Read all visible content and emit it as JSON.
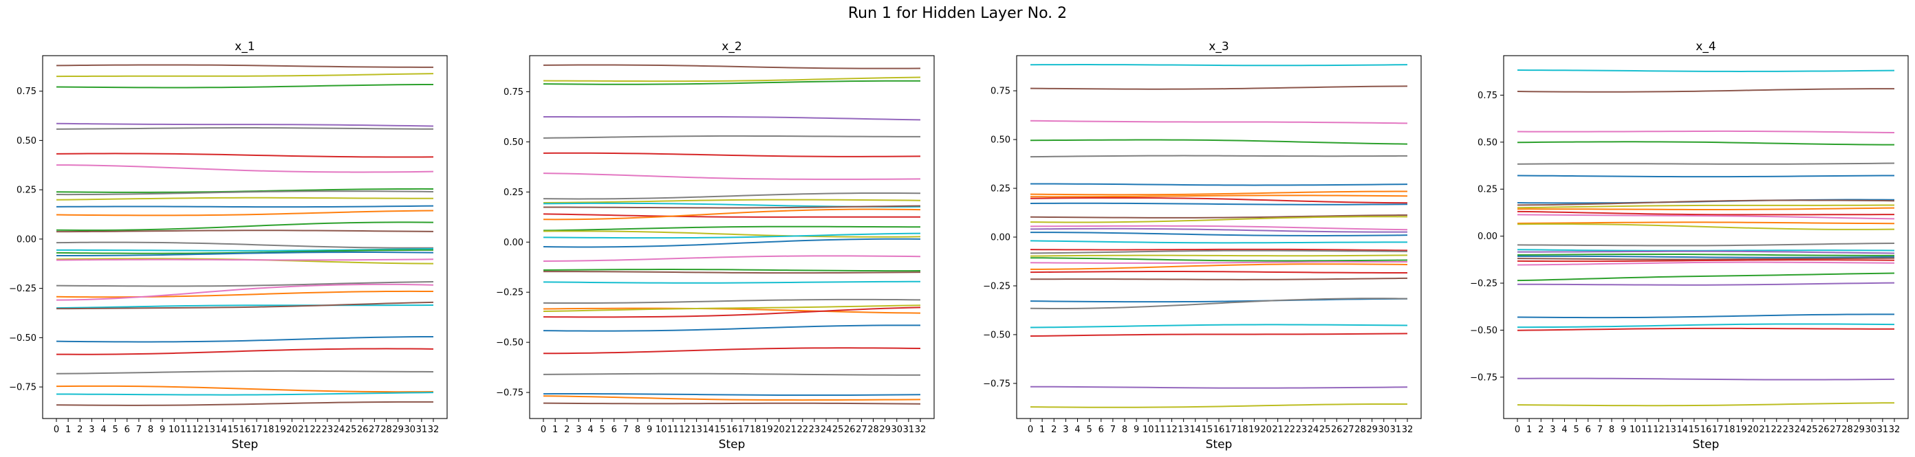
{
  "suptitle": "Run 1 for Hidden Layer No. 2",
  "chart_data": [
    {
      "type": "line",
      "title": "x_1",
      "xlabel": "Step",
      "ylabel": "",
      "x": [
        0,
        1,
        2,
        3,
        4,
        5,
        6,
        7,
        8,
        9,
        10,
        11,
        12,
        13,
        14,
        15,
        16,
        17,
        18,
        19,
        20,
        21,
        22,
        23,
        24,
        25,
        26,
        27,
        28,
        29,
        30,
        31,
        32
      ],
      "xticks": [
        "0",
        "1",
        "2",
        "3",
        "4",
        "5",
        "6",
        "7",
        "8",
        "9",
        "10",
        "11",
        "12",
        "13",
        "14",
        "15",
        "16",
        "17",
        "18",
        "19",
        "20",
        "21",
        "22",
        "23",
        "24",
        "25",
        "26",
        "27",
        "28",
        "29",
        "30",
        "31",
        "32"
      ],
      "ylim": [
        -0.91,
        0.93
      ],
      "yticks": [
        -0.75,
        -0.5,
        -0.25,
        0.0,
        0.25,
        0.5,
        0.75
      ],
      "yticklabels": [
        "−0.75",
        "−0.50",
        "−0.25",
        "0.00",
        "0.25",
        "0.50",
        "0.75"
      ],
      "series": [
        {
          "color": "#8c564b",
          "start": 0.88,
          "end": 0.875
        },
        {
          "color": "#bcbd22",
          "start": 0.82,
          "end": 0.84
        },
        {
          "color": "#2ca02c",
          "start": 0.77,
          "end": 0.78
        },
        {
          "color": "#9467bd",
          "start": 0.59,
          "end": 0.57
        },
        {
          "color": "#7f7f7f",
          "start": 0.56,
          "end": 0.56
        },
        {
          "color": "#d62728",
          "start": 0.43,
          "end": 0.42
        },
        {
          "color": "#e377c2",
          "start": 0.37,
          "end": 0.34
        },
        {
          "color": "#2ca02c",
          "start": 0.24,
          "end": 0.25
        },
        {
          "color": "#7f7f7f",
          "start": 0.23,
          "end": 0.24
        },
        {
          "color": "#bcbd22",
          "start": 0.2,
          "end": 0.21
        },
        {
          "color": "#1f77b4",
          "start": 0.16,
          "end": 0.17
        },
        {
          "color": "#ff7f0e",
          "start": 0.12,
          "end": 0.14
        },
        {
          "color": "#2ca02c",
          "start": 0.05,
          "end": 0.08
        },
        {
          "color": "#8c564b",
          "start": 0.04,
          "end": 0.04
        },
        {
          "color": "#7f7f7f",
          "start": -0.02,
          "end": -0.04
        },
        {
          "color": "#17becf",
          "start": -0.06,
          "end": -0.05
        },
        {
          "color": "#2ca02c",
          "start": -0.07,
          "end": -0.06
        },
        {
          "color": "#1f77b4",
          "start": -0.08,
          "end": -0.07
        },
        {
          "color": "#bcbd22",
          "start": -0.1,
          "end": -0.12
        },
        {
          "color": "#e377c2",
          "start": -0.11,
          "end": -0.1
        },
        {
          "color": "#7f7f7f",
          "start": -0.24,
          "end": -0.22
        },
        {
          "color": "#ff7f0e",
          "start": -0.29,
          "end": -0.27
        },
        {
          "color": "#e377c2",
          "start": -0.3,
          "end": -0.23
        },
        {
          "color": "#17becf",
          "start": -0.35,
          "end": -0.33
        },
        {
          "color": "#8c564b",
          "start": -0.36,
          "end": -0.32
        },
        {
          "color": "#1f77b4",
          "start": -0.52,
          "end": -0.5
        },
        {
          "color": "#d62728",
          "start": -0.58,
          "end": -0.56
        },
        {
          "color": "#7f7f7f",
          "start": -0.68,
          "end": -0.67
        },
        {
          "color": "#ff7f0e",
          "start": -0.75,
          "end": -0.77
        },
        {
          "color": "#17becf",
          "start": -0.79,
          "end": -0.78
        },
        {
          "color": "#8c564b",
          "start": -0.84,
          "end": -0.83
        }
      ]
    },
    {
      "type": "line",
      "title": "x_2",
      "xlabel": "Step",
      "ylabel": "",
      "x": [
        0,
        1,
        2,
        3,
        4,
        5,
        6,
        7,
        8,
        9,
        10,
        11,
        12,
        13,
        14,
        15,
        16,
        17,
        18,
        19,
        20,
        21,
        22,
        23,
        24,
        25,
        26,
        27,
        28,
        29,
        30,
        31,
        32
      ],
      "xticks": [
        "0",
        "1",
        "2",
        "3",
        "4",
        "5",
        "6",
        "7",
        "8",
        "9",
        "10",
        "11",
        "12",
        "13",
        "14",
        "15",
        "16",
        "17",
        "18",
        "19",
        "20",
        "21",
        "22",
        "23",
        "24",
        "25",
        "26",
        "27",
        "28",
        "29",
        "30",
        "31",
        "32"
      ],
      "ylim": [
        -0.88,
        0.93
      ],
      "yticks": [
        -0.75,
        -0.5,
        -0.25,
        0.0,
        0.25,
        0.5,
        0.75
      ],
      "yticklabels": [
        "−0.75",
        "−0.50",
        "−0.25",
        "0.00",
        "0.25",
        "0.50",
        "0.75"
      ],
      "series": [
        {
          "color": "#8c564b",
          "start": 0.88,
          "end": 0.87
        },
        {
          "color": "#bcbd22",
          "start": 0.8,
          "end": 0.82
        },
        {
          "color": "#2ca02c",
          "start": 0.79,
          "end": 0.8
        },
        {
          "color": "#9467bd",
          "start": 0.63,
          "end": 0.61
        },
        {
          "color": "#7f7f7f",
          "start": 0.52,
          "end": 0.53
        },
        {
          "color": "#d62728",
          "start": 0.44,
          "end": 0.43
        },
        {
          "color": "#e377c2",
          "start": 0.34,
          "end": 0.31
        },
        {
          "color": "#7f7f7f",
          "start": 0.22,
          "end": 0.24
        },
        {
          "color": "#bcbd22",
          "start": 0.2,
          "end": 0.21
        },
        {
          "color": "#17becf",
          "start": 0.19,
          "end": 0.18
        },
        {
          "color": "#8c564b",
          "start": 0.17,
          "end": 0.18
        },
        {
          "color": "#d62728",
          "start": 0.14,
          "end": 0.12
        },
        {
          "color": "#ff7f0e",
          "start": 0.12,
          "end": 0.16
        },
        {
          "color": "#2ca02c",
          "start": 0.06,
          "end": 0.08
        },
        {
          "color": "#bcbd22",
          "start": 0.05,
          "end": 0.03
        },
        {
          "color": "#17becf",
          "start": 0.02,
          "end": 0.04
        },
        {
          "color": "#1f77b4",
          "start": -0.02,
          "end": 0.01
        },
        {
          "color": "#e377c2",
          "start": -0.09,
          "end": -0.07
        },
        {
          "color": "#2ca02c",
          "start": -0.14,
          "end": -0.14
        },
        {
          "color": "#8c564b",
          "start": -0.15,
          "end": -0.15
        },
        {
          "color": "#17becf",
          "start": -0.2,
          "end": -0.2
        },
        {
          "color": "#7f7f7f",
          "start": -0.3,
          "end": -0.29
        },
        {
          "color": "#ff7f0e",
          "start": -0.33,
          "end": -0.35
        },
        {
          "color": "#bcbd22",
          "start": -0.35,
          "end": -0.31
        },
        {
          "color": "#d62728",
          "start": -0.38,
          "end": -0.33
        },
        {
          "color": "#1f77b4",
          "start": -0.44,
          "end": -0.42
        },
        {
          "color": "#d62728",
          "start": -0.55,
          "end": -0.53
        },
        {
          "color": "#7f7f7f",
          "start": -0.66,
          "end": -0.66
        },
        {
          "color": "#1f77b4",
          "start": -0.76,
          "end": -0.76
        },
        {
          "color": "#ff7f0e",
          "start": -0.77,
          "end": -0.79
        },
        {
          "color": "#8c564b",
          "start": -0.8,
          "end": -0.81
        }
      ]
    },
    {
      "type": "line",
      "title": "x_3",
      "xlabel": "Step",
      "ylabel": "",
      "x": [
        0,
        1,
        2,
        3,
        4,
        5,
        6,
        7,
        8,
        9,
        10,
        11,
        12,
        13,
        14,
        15,
        16,
        17,
        18,
        19,
        20,
        21,
        22,
        23,
        24,
        25,
        26,
        27,
        28,
        29,
        30,
        31,
        32
      ],
      "xticks": [
        "0",
        "1",
        "2",
        "3",
        "4",
        "5",
        "6",
        "7",
        "8",
        "9",
        "10",
        "11",
        "12",
        "13",
        "14",
        "15",
        "16",
        "17",
        "18",
        "19",
        "20",
        "21",
        "22",
        "23",
        "24",
        "25",
        "26",
        "27",
        "28",
        "29",
        "30",
        "31",
        "32"
      ],
      "ylim": [
        -0.93,
        0.93
      ],
      "yticks": [
        -0.75,
        -0.5,
        -0.25,
        0.0,
        0.25,
        0.5,
        0.75
      ],
      "yticklabels": [
        "−0.75",
        "−0.50",
        "−0.25",
        "0.00",
        "0.25",
        "0.50",
        "0.75"
      ],
      "series": [
        {
          "color": "#17becf",
          "start": 0.88,
          "end": 0.885
        },
        {
          "color": "#8c564b",
          "start": 0.76,
          "end": 0.77
        },
        {
          "color": "#e377c2",
          "start": 0.6,
          "end": 0.58
        },
        {
          "color": "#2ca02c",
          "start": 0.5,
          "end": 0.48
        },
        {
          "color": "#7f7f7f",
          "start": 0.41,
          "end": 0.42
        },
        {
          "color": "#1f77b4",
          "start": 0.27,
          "end": 0.27
        },
        {
          "color": "#ff7f0e",
          "start": 0.22,
          "end": 0.23
        },
        {
          "color": "#ff7f0e",
          "start": 0.21,
          "end": 0.21
        },
        {
          "color": "#d62728",
          "start": 0.2,
          "end": 0.18
        },
        {
          "color": "#1f77b4",
          "start": 0.17,
          "end": 0.17
        },
        {
          "color": "#8c564b",
          "start": 0.1,
          "end": 0.11
        },
        {
          "color": "#bcbd22",
          "start": 0.08,
          "end": 0.1
        },
        {
          "color": "#e377c2",
          "start": 0.06,
          "end": 0.04
        },
        {
          "color": "#9467bd",
          "start": 0.04,
          "end": 0.03
        },
        {
          "color": "#1f77b4",
          "start": 0.02,
          "end": 0.01
        },
        {
          "color": "#17becf",
          "start": -0.02,
          "end": -0.03
        },
        {
          "color": "#d62728",
          "start": -0.06,
          "end": -0.07
        },
        {
          "color": "#7f7f7f",
          "start": -0.08,
          "end": -0.07
        },
        {
          "color": "#bcbd22",
          "start": -0.1,
          "end": -0.09
        },
        {
          "color": "#2ca02c",
          "start": -0.11,
          "end": -0.12
        },
        {
          "color": "#e377c2",
          "start": -0.13,
          "end": -0.13
        },
        {
          "color": "#ff7f0e",
          "start": -0.16,
          "end": -0.14
        },
        {
          "color": "#d62728",
          "start": -0.18,
          "end": -0.18
        },
        {
          "color": "#8c564b",
          "start": -0.22,
          "end": -0.21
        },
        {
          "color": "#1f77b4",
          "start": -0.33,
          "end": -0.32
        },
        {
          "color": "#7f7f7f",
          "start": -0.36,
          "end": -0.32
        },
        {
          "color": "#17becf",
          "start": -0.46,
          "end": -0.45
        },
        {
          "color": "#d62728",
          "start": -0.51,
          "end": -0.49
        },
        {
          "color": "#9467bd",
          "start": -0.77,
          "end": -0.77
        },
        {
          "color": "#bcbd22",
          "start": -0.87,
          "end": -0.86
        }
      ]
    },
    {
      "type": "line",
      "title": "x_4",
      "xlabel": "Step",
      "ylabel": "",
      "x": [
        0,
        1,
        2,
        3,
        4,
        5,
        6,
        7,
        8,
        9,
        10,
        11,
        12,
        13,
        14,
        15,
        16,
        17,
        18,
        19,
        20,
        21,
        22,
        23,
        24,
        25,
        26,
        27,
        28,
        29,
        30,
        31,
        32
      ],
      "xticks": [
        "0",
        "1",
        "2",
        "3",
        "4",
        "5",
        "6",
        "7",
        "8",
        "9",
        "10",
        "11",
        "12",
        "13",
        "14",
        "15",
        "16",
        "17",
        "18",
        "19",
        "20",
        "21",
        "22",
        "23",
        "24",
        "25",
        "26",
        "27",
        "28",
        "29",
        "30",
        "31",
        "32"
      ],
      "ylim": [
        -0.97,
        0.96
      ],
      "yticks": [
        -0.75,
        -0.5,
        -0.25,
        0.0,
        0.25,
        0.5,
        0.75
      ],
      "yticklabels": [
        "−0.75",
        "−0.50",
        "−0.25",
        "0.00",
        "0.25",
        "0.50",
        "0.75"
      ],
      "series": [
        {
          "color": "#17becf",
          "start": 0.88,
          "end": 0.88
        },
        {
          "color": "#8c564b",
          "start": 0.77,
          "end": 0.78
        },
        {
          "color": "#e377c2",
          "start": 0.56,
          "end": 0.55
        },
        {
          "color": "#2ca02c",
          "start": 0.5,
          "end": 0.49
        },
        {
          "color": "#7f7f7f",
          "start": 0.38,
          "end": 0.39
        },
        {
          "color": "#1f77b4",
          "start": 0.32,
          "end": 0.32
        },
        {
          "color": "#1f77b4",
          "start": 0.18,
          "end": 0.19
        },
        {
          "color": "#8c564b",
          "start": 0.17,
          "end": 0.19
        },
        {
          "color": "#bcbd22",
          "start": 0.15,
          "end": 0.17
        },
        {
          "color": "#ff7f0e",
          "start": 0.14,
          "end": 0.15
        },
        {
          "color": "#d62728",
          "start": 0.13,
          "end": 0.11
        },
        {
          "color": "#e377c2",
          "start": 0.12,
          "end": 0.09
        },
        {
          "color": "#ff7f0e",
          "start": 0.07,
          "end": 0.07
        },
        {
          "color": "#bcbd22",
          "start": 0.06,
          "end": 0.04
        },
        {
          "color": "#7f7f7f",
          "start": -0.05,
          "end": -0.04
        },
        {
          "color": "#17becf",
          "start": -0.07,
          "end": -0.08
        },
        {
          "color": "#9467bd",
          "start": -0.08,
          "end": -0.09
        },
        {
          "color": "#2ca02c",
          "start": -0.1,
          "end": -0.1
        },
        {
          "color": "#1f77b4",
          "start": -0.11,
          "end": -0.11
        },
        {
          "color": "#8c564b",
          "start": -0.12,
          "end": -0.12
        },
        {
          "color": "#d62728",
          "start": -0.13,
          "end": -0.13
        },
        {
          "color": "#e377c2",
          "start": -0.15,
          "end": -0.14
        },
        {
          "color": "#2ca02c",
          "start": -0.24,
          "end": -0.19
        },
        {
          "color": "#9467bd",
          "start": -0.26,
          "end": -0.25
        },
        {
          "color": "#1f77b4",
          "start": -0.43,
          "end": -0.42
        },
        {
          "color": "#17becf",
          "start": -0.48,
          "end": -0.47
        },
        {
          "color": "#d62728",
          "start": -0.5,
          "end": -0.49
        },
        {
          "color": "#9467bd",
          "start": -0.76,
          "end": -0.76
        },
        {
          "color": "#bcbd22",
          "start": -0.9,
          "end": -0.89
        }
      ]
    }
  ]
}
